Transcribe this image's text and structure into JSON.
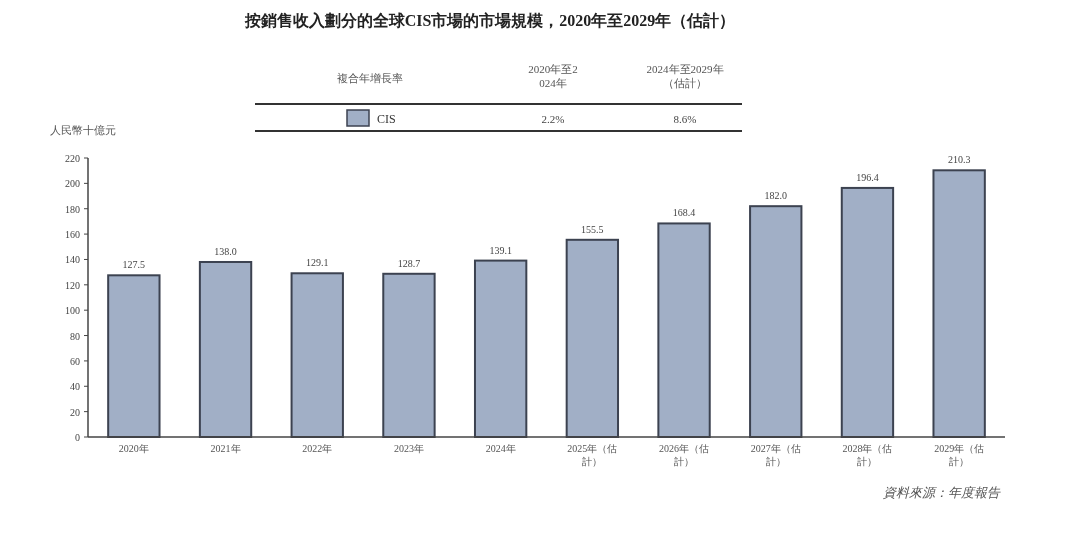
{
  "chart_data": {
    "type": "bar",
    "title": "按銷售收入劃分的全球CIS市場的市場規模，2020年至2029年（估計）",
    "ylabel": "人民幣十億元",
    "categories": [
      "2020年",
      "2021年",
      "2022年",
      "2023年",
      "2024年",
      "2025年（估計）",
      "2026年（估計）",
      "2027年（估計）",
      "2028年（估計）",
      "2029年（估計）"
    ],
    "series": [
      {
        "name": "CIS",
        "color": "#a1afc6",
        "values": [
          127.5,
          138.0,
          129.1,
          128.7,
          139.1,
          155.5,
          168.4,
          182.0,
          196.4,
          210.3
        ],
        "value_labels": [
          "127.5",
          "138.0",
          "129.1",
          "128.7",
          "139.1",
          "155.5",
          "168.4",
          "182.0",
          "196.4",
          "210.3"
        ]
      }
    ],
    "ylim": [
      0,
      220
    ],
    "yticks": [
      0,
      20,
      40,
      60,
      80,
      100,
      120,
      140,
      160,
      180,
      200,
      220
    ],
    "legend": "top",
    "annotations": [
      "複合年增長率",
      "2020年至2024年",
      "2024年至2029年（估計）",
      "2.2%",
      "8.6%",
      "資料來源：年度報告"
    ]
  }
}
